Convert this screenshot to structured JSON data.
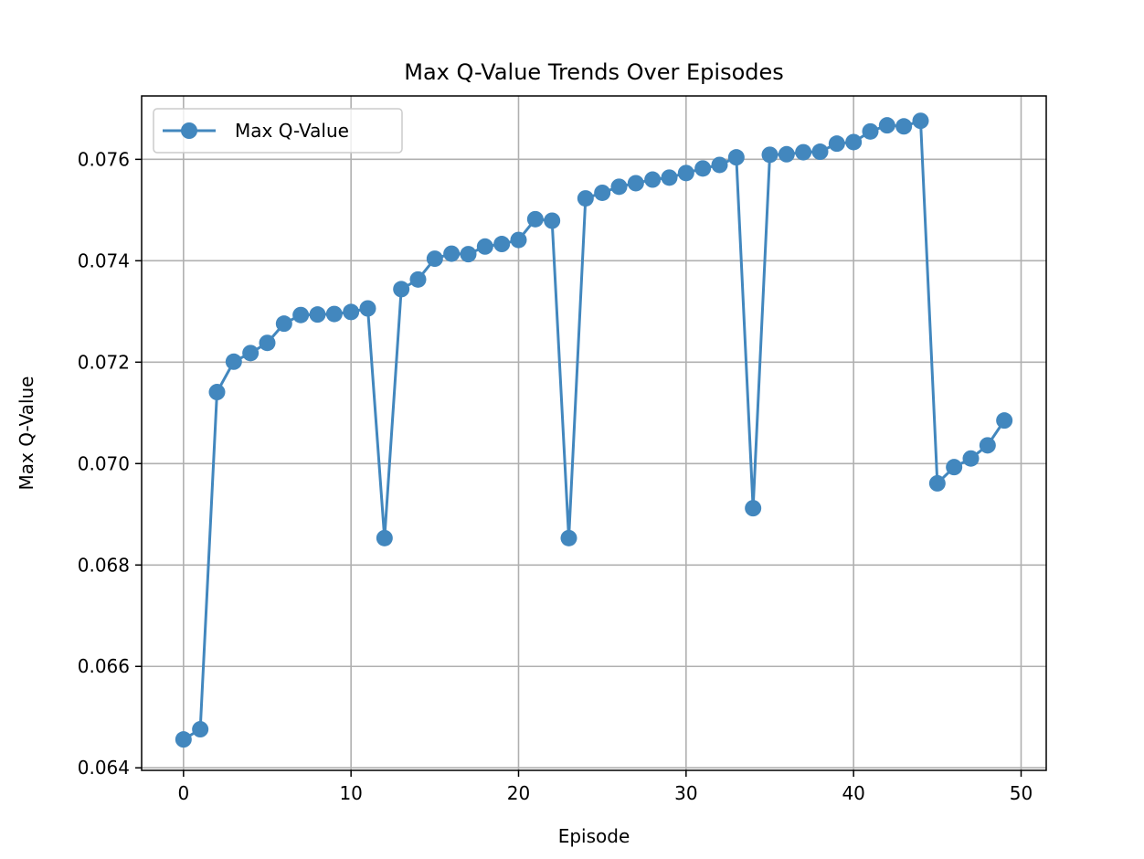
{
  "chart_data": {
    "type": "line",
    "title": "Max Q-Value Trends Over Episodes",
    "xlabel": "Episode",
    "ylabel": "Max Q-Value",
    "xlim": [
      -2.5,
      51.5
    ],
    "ylim": [
      0.06395,
      0.07725
    ],
    "xticks": [
      0,
      10,
      20,
      30,
      40,
      50
    ],
    "xtick_labels": [
      "0",
      "10",
      "20",
      "30",
      "40",
      "50"
    ],
    "yticks": [
      0.064,
      0.066,
      0.068,
      0.07,
      0.072,
      0.074,
      0.076
    ],
    "ytick_labels": [
      "0.064",
      "0.066",
      "0.068",
      "0.070",
      "0.072",
      "0.074",
      "0.076"
    ],
    "grid": true,
    "legend_position": "upper-left",
    "series": [
      {
        "name": "Max Q-Value",
        "color": "#4287be",
        "marker": "circle",
        "x": [
          0,
          1,
          2,
          3,
          4,
          5,
          6,
          7,
          8,
          9,
          10,
          11,
          12,
          13,
          14,
          15,
          16,
          17,
          18,
          19,
          20,
          21,
          22,
          23,
          24,
          25,
          26,
          27,
          28,
          29,
          30,
          31,
          32,
          33,
          34,
          35,
          36,
          37,
          38,
          39,
          40,
          41,
          42,
          43,
          44,
          45,
          46,
          47,
          48,
          49
        ],
        "y": [
          0.06456,
          0.06476,
          0.07141,
          0.07201,
          0.07218,
          0.07238,
          0.07276,
          0.07293,
          0.07294,
          0.07295,
          0.07299,
          0.07306,
          0.06853,
          0.07344,
          0.07363,
          0.07404,
          0.07414,
          0.07413,
          0.07428,
          0.07433,
          0.07441,
          0.07482,
          0.07479,
          0.06853,
          0.07523,
          0.07534,
          0.07546,
          0.07553,
          0.0756,
          0.07564,
          0.07573,
          0.07582,
          0.07589,
          0.07604,
          0.06912,
          0.07609,
          0.0761,
          0.07614,
          0.07615,
          0.07631,
          0.07634,
          0.07655,
          0.07667,
          0.07665,
          0.07676,
          0.06961,
          0.06993,
          0.0701,
          0.07036,
          0.07085
        ]
      }
    ]
  }
}
